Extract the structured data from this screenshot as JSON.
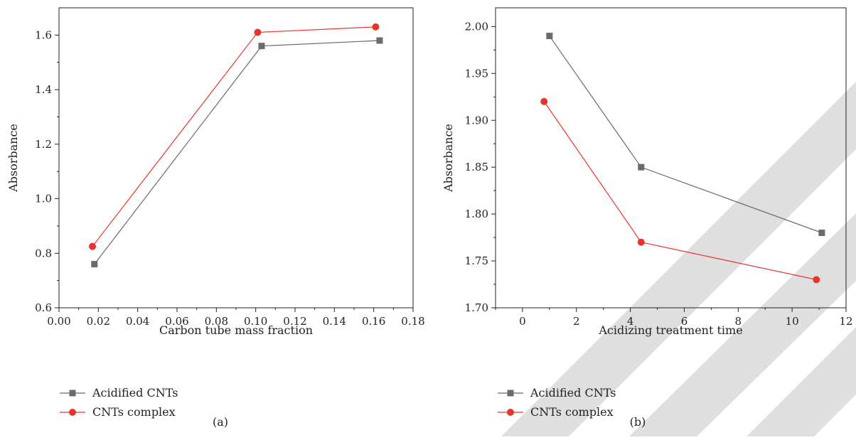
{
  "colors": {
    "acidified": "#6b6b6b",
    "complex": "#e8342f",
    "axis": "#222222",
    "watermark": "#d9d9d9"
  },
  "chart_data": [
    {
      "type": "line",
      "panel_label": "(a)",
      "xlabel": "Carbon tube mass fraction",
      "ylabel": "Absorbance",
      "xlim": [
        0.0,
        0.18
      ],
      "ylim": [
        0.6,
        1.7
      ],
      "xticks": [
        0.0,
        0.02,
        0.04,
        0.06,
        0.08,
        0.1,
        0.12,
        0.14,
        0.16,
        0.18
      ],
      "xtick_labels": [
        "0.00",
        "0.02",
        "0.04",
        "0.06",
        "0.08",
        "0.10",
        "0.12",
        "0.14",
        "0.16",
        "0.18"
      ],
      "yticks": [
        0.6,
        0.8,
        1.0,
        1.2,
        1.4,
        1.6
      ],
      "ytick_labels": [
        "0.6",
        "0.8",
        "1.0",
        "1.2",
        "1.4",
        "1.6"
      ],
      "grid": false,
      "legend_position": "below",
      "series": [
        {
          "name": "Acidified CNTs",
          "marker": "square",
          "color_key": "acidified",
          "x": [
            0.018,
            0.103,
            0.163
          ],
          "y": [
            0.76,
            1.56,
            1.58
          ]
        },
        {
          "name": "CNTs complex",
          "marker": "circle",
          "color_key": "complex",
          "x": [
            0.017,
            0.101,
            0.161
          ],
          "y": [
            0.825,
            1.61,
            1.63
          ]
        }
      ]
    },
    {
      "type": "line",
      "panel_label": "(b)",
      "xlabel": "Acidizing treatment time",
      "ylabel": "Absorbance",
      "xlim": [
        -1.0,
        12.0
      ],
      "ylim": [
        1.7,
        2.02
      ],
      "xticks": [
        0,
        2,
        4,
        6,
        8,
        10,
        12
      ],
      "xtick_labels": [
        "0",
        "2",
        "4",
        "6",
        "8",
        "10",
        "12"
      ],
      "yticks": [
        1.7,
        1.75,
        1.8,
        1.85,
        1.9,
        1.95,
        2.0
      ],
      "ytick_labels": [
        "1.70",
        "1.75",
        "1.80",
        "1.85",
        "1.90",
        "1.95",
        "2.00"
      ],
      "grid": false,
      "legend_position": "below",
      "series": [
        {
          "name": "Acidified CNTs",
          "marker": "square",
          "color_key": "acidified",
          "x": [
            1.0,
            4.4,
            11.1
          ],
          "y": [
            1.99,
            1.85,
            1.78
          ]
        },
        {
          "name": "CNTs complex",
          "marker": "circle",
          "color_key": "complex",
          "x": [
            0.8,
            4.4,
            10.9
          ],
          "y": [
            1.92,
            1.77,
            1.73
          ]
        }
      ]
    }
  ]
}
